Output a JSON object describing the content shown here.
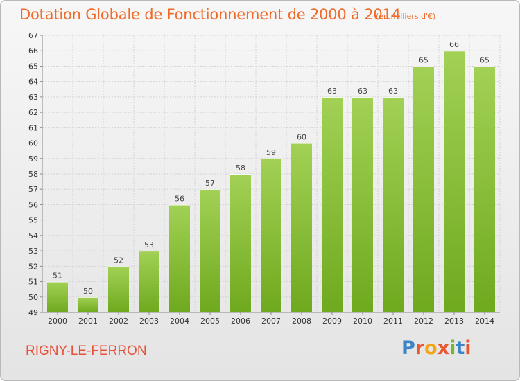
{
  "title": "Dotation Globale de Fonctionnement de 2000 à 2014",
  "subtitle": "(en milliers d'€)",
  "commune": "RIGNY-LE-FERRON",
  "logo": {
    "letters": [
      "P",
      "r",
      "o",
      "x",
      "i",
      "t",
      "i"
    ],
    "colors": [
      "#3a84c8",
      "#e9562d",
      "#f2a516",
      "#e9562d",
      "#79b534",
      "#3a84c8",
      "#e9562d"
    ]
  },
  "colors": {
    "bar_light": "#a2d155",
    "bar_dark": "#6fa91e",
    "title": "#f06a2a",
    "commune": "#e8503a"
  },
  "chart_data": {
    "type": "bar",
    "title": "Dotation Globale de Fonctionnement de 2000 à 2014",
    "subtitle": "(en milliers d'€)",
    "xlabel": "",
    "ylabel": "",
    "categories": [
      "2000",
      "2001",
      "2002",
      "2003",
      "2004",
      "2005",
      "2006",
      "2007",
      "2008",
      "2009",
      "2010",
      "2011",
      "2012",
      "2013",
      "2014"
    ],
    "values": [
      51,
      50,
      52,
      53,
      56,
      57,
      58,
      59,
      60,
      63,
      63,
      63,
      65,
      66,
      65
    ],
    "ylim": [
      49,
      67
    ],
    "yticks": [
      49,
      50,
      51,
      52,
      53,
      54,
      55,
      56,
      57,
      58,
      59,
      60,
      61,
      62,
      63,
      64,
      65,
      66,
      67
    ],
    "grid": true,
    "legend": "none"
  }
}
